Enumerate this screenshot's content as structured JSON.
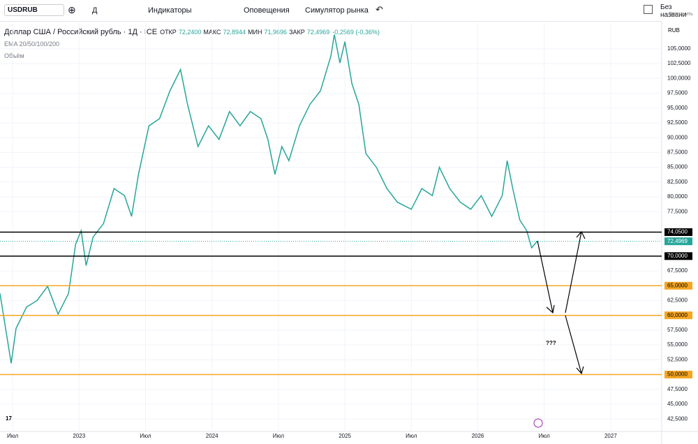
{
  "toolbar": {
    "symbol": "USDRUB",
    "interval": "Д",
    "indicators": "Индикаторы",
    "alerts": "Оповещения",
    "replay": "Симулятор рынка",
    "layout_name": "Без названи",
    "save": "Сохранить"
  },
  "legend": {
    "title": "Доллар США / Российский рубль · 1Д · ICE",
    "ohlc": [
      {
        "label": "ОТКР",
        "value": "72,2400"
      },
      {
        "label": "МАКС",
        "value": "72,8944"
      },
      {
        "label": "МИН",
        "value": "71,9696"
      },
      {
        "label": "ЗАКР",
        "value": "72,4969"
      }
    ],
    "change": "-0,2569 (-0,36%)",
    "ema": "EMA 20/50/100/200",
    "volume": "Объём"
  },
  "currency": "RUB",
  "annotation": "???",
  "chart_data": {
    "type": "line",
    "grid": true,
    "x": [
      2022.405,
      2022.447,
      2022.489,
      2022.526,
      2022.605,
      2022.684,
      2022.763,
      2022.842,
      2022.921,
      2022.974,
      2023.016,
      2023.053,
      2023.105,
      2023.184,
      2023.263,
      2023.342,
      2023.395,
      2023.447,
      2023.526,
      2023.605,
      2023.684,
      2023.763,
      2023.816,
      2023.895,
      2023.974,
      2024.053,
      2024.132,
      2024.211,
      2024.289,
      2024.368,
      2024.421,
      2024.474,
      2024.526,
      2024.579,
      2024.658,
      2024.737,
      2024.816,
      2024.895,
      2024.921,
      2024.963,
      2025.0,
      2025.053,
      2025.105,
      2025.158,
      2025.237,
      2025.316,
      2025.395,
      2025.5,
      2025.579,
      2025.658,
      2025.711,
      2025.789,
      2025.868,
      2025.947,
      2026.026,
      2026.105,
      2026.184,
      2026.221,
      2026.263,
      2026.316,
      2026.368,
      2026.405,
      2026.447
    ],
    "series": [
      {
        "color": "#26a69a",
        "values": [
          63.7,
          57.8,
          51.9,
          57.8,
          61.4,
          62.5,
          64.9,
          60.2,
          63.7,
          72.0,
          74.3,
          68.4,
          73.2,
          75.5,
          81.4,
          80.2,
          76.7,
          83.8,
          92.0,
          93.2,
          97.9,
          101.5,
          95.6,
          88.5,
          92.0,
          89.7,
          94.4,
          92.0,
          94.4,
          93.2,
          89.7,
          83.8,
          88.5,
          86.1,
          92.0,
          95.6,
          97.9,
          103.8,
          107.4,
          102.6,
          106.2,
          99.1,
          95.6,
          87.3,
          85.0,
          81.4,
          79.1,
          77.9,
          81.4,
          80.2,
          85.0,
          81.4,
          79.1,
          77.9,
          80.2,
          76.7,
          80.2,
          86.1,
          81.4,
          76.1,
          74.3,
          71.4,
          72.5
        ]
      }
    ],
    "levels": [
      {
        "value": 74.05,
        "label": "74,0500",
        "color": "#000000"
      },
      {
        "value": 70,
        "label": "70,0000",
        "color": "#000000"
      },
      {
        "value": 65,
        "label": "65,0000",
        "color": "#f5a623"
      },
      {
        "value": 60,
        "label": "60,0000",
        "color": "#f5a623"
      },
      {
        "value": 50,
        "label": "50,0000",
        "color": "#f5a623"
      }
    ],
    "last_price": {
      "value": 72.4969,
      "label": "72,4969",
      "color": "#26a69a"
    },
    "xlim": [
      2022.405,
      2027.384
    ],
    "xticks": [
      {
        "value": 2022.5,
        "label": "Июл"
      },
      2023,
      {
        "value": 2023.5,
        "label": "Июл"
      },
      2024,
      {
        "value": 2024.5,
        "label": "Июл"
      },
      2025,
      {
        "value": 2025.5,
        "label": "Июл"
      },
      2026,
      {
        "value": 2026.5,
        "label": "Июл"
      },
      2027
    ],
    "ylim": [
      40.4,
      109.7
    ],
    "yticks": [
      {
        "value": 42.5,
        "label": "42,5000"
      },
      {
        "value": 45,
        "label": "45,0000"
      },
      {
        "value": 47.5,
        "label": "47,5000"
      },
      {
        "value": 52.5,
        "label": "52,5000"
      },
      {
        "value": 55,
        "label": "55,0000"
      },
      {
        "value": 57.5,
        "label": "57,5000"
      },
      {
        "value": 62.5,
        "label": "62,5000"
      },
      {
        "value": 67.5,
        "label": "67,5000"
      },
      {
        "value": 77.5,
        "label": "77,5000"
      },
      {
        "value": 80,
        "label": "80,0000"
      },
      {
        "value": 82.5,
        "label": "82,5000"
      },
      {
        "value": 85,
        "label": "85,0000"
      },
      {
        "value": 87.5,
        "label": "87,5000"
      },
      {
        "value": 90,
        "label": "90,0000"
      },
      {
        "value": 92.5,
        "label": "92,5000"
      },
      {
        "value": 95,
        "label": "95,0000"
      },
      {
        "value": 97.5,
        "label": "97,5000"
      },
      {
        "value": 100,
        "label": "100,0000"
      },
      {
        "value": 102.5,
        "label": "102,5000"
      },
      {
        "value": 105,
        "label": "105,0000"
      }
    ]
  }
}
